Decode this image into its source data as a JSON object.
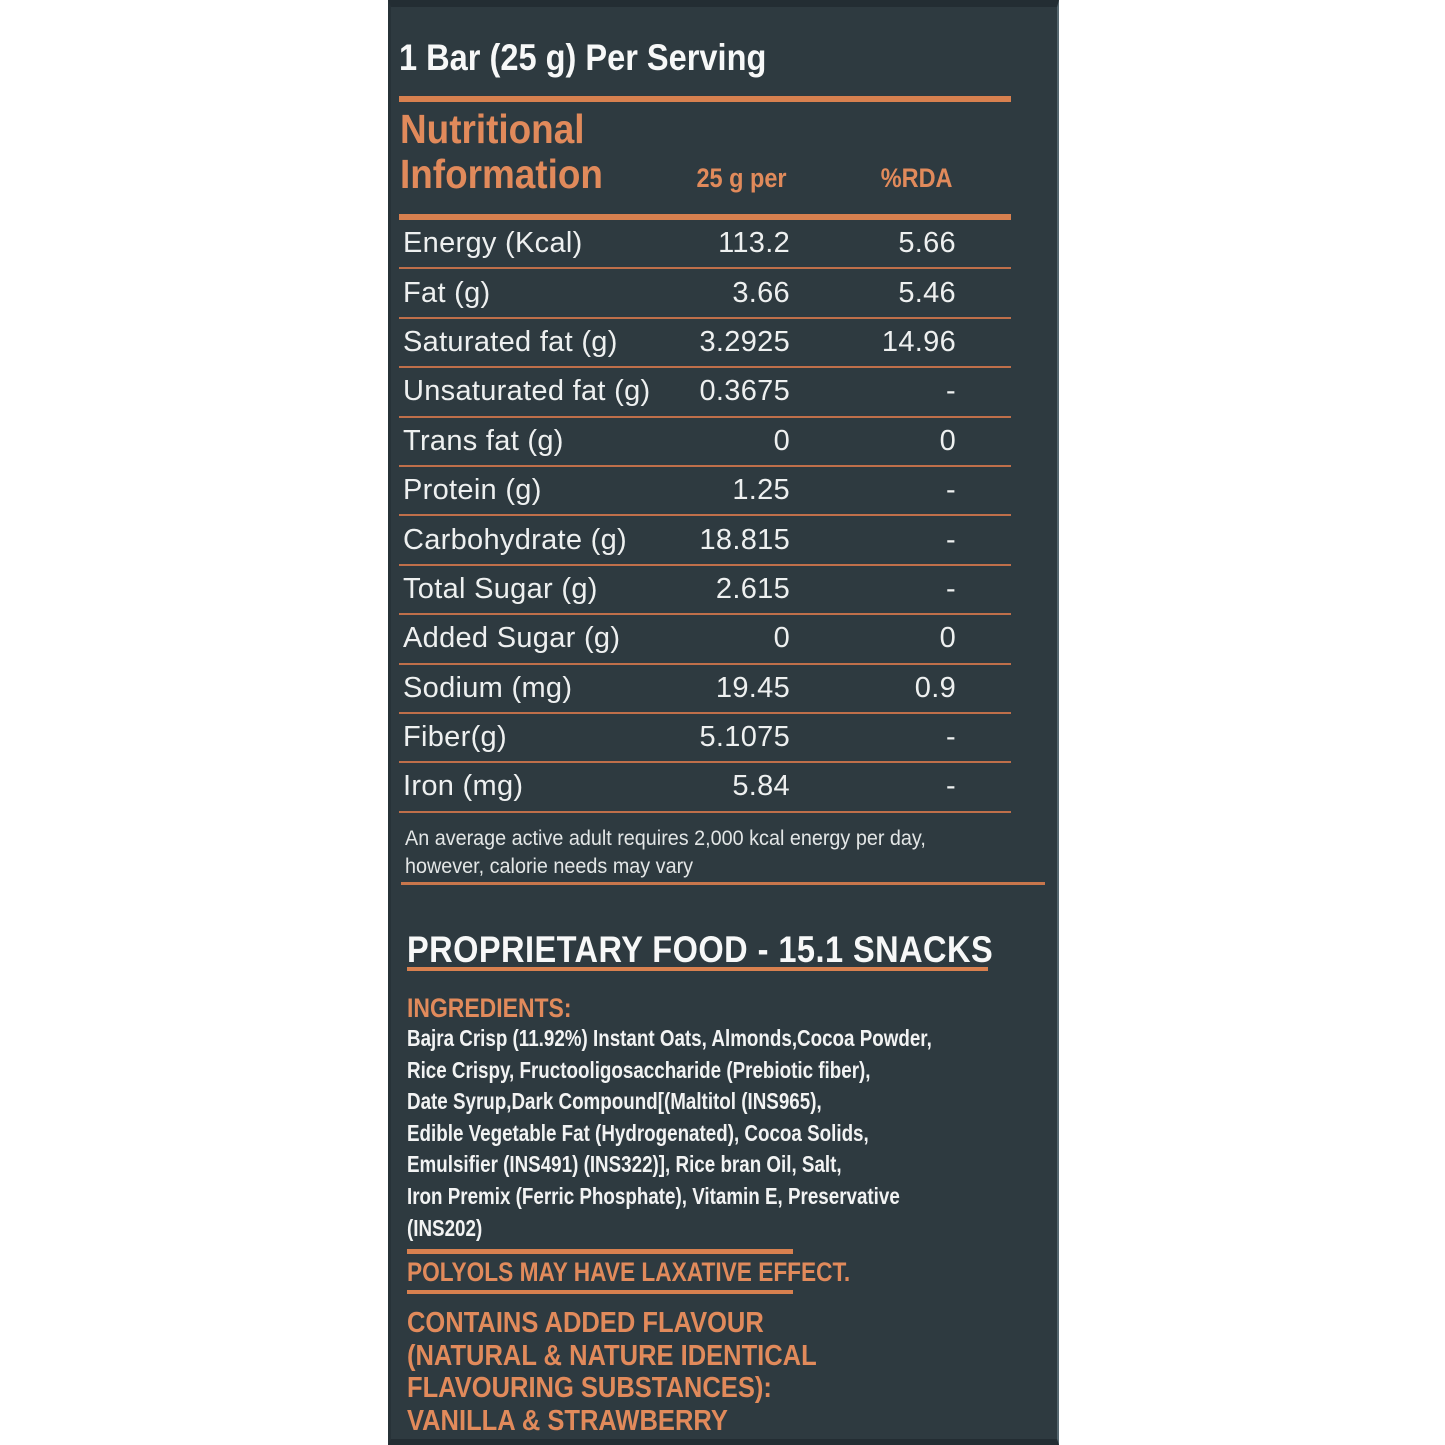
{
  "colors": {
    "panel_bg": "#2e3a40",
    "accent_orange": "#e18a5b",
    "rule_strong": "#d8804f",
    "rule_thin": "#bf6f4a",
    "text_white": "#f5f6f6"
  },
  "header": {
    "serving": "1 Bar (25 g) Per Serving",
    "title_line1": "Nutritional",
    "title_line2": "Information",
    "col_amount": "25 g per",
    "col_rda": "%RDA"
  },
  "table": {
    "rows": [
      {
        "label": "Energy (Kcal)",
        "amount": "113.2",
        "rda": "5.66"
      },
      {
        "label": "Fat (g)",
        "amount": "3.66",
        "rda": "5.46"
      },
      {
        "label": "Saturated fat (g)",
        "amount": "3.2925",
        "rda": "14.96"
      },
      {
        "label": "Unsaturated fat (g)",
        "amount": "0.3675",
        "rda": "-"
      },
      {
        "label": "Trans fat (g)",
        "amount": "0",
        "rda": "0"
      },
      {
        "label": "Protein (g)",
        "amount": "1.25",
        "rda": "-"
      },
      {
        "label": "Carbohydrate (g)",
        "amount": "18.815",
        "rda": "-"
      },
      {
        "label": "Total Sugar (g)",
        "amount": "2.615",
        "rda": "-"
      },
      {
        "label": "Added Sugar (g)",
        "amount": "0",
        "rda": "0"
      },
      {
        "label": "Sodium (mg)",
        "amount": "19.45",
        "rda": "0.9"
      },
      {
        "label": "Fiber(g)",
        "amount": "5.1075",
        "rda": "-"
      },
      {
        "label": "Iron (mg)",
        "amount": "5.84",
        "rda": "-"
      }
    ]
  },
  "footnote": {
    "line1": "An average active adult requires 2,000 kcal energy per day,",
    "line2": "however, calorie needs may vary"
  },
  "proprietary": {
    "title": "PROPRIETARY FOOD - 15.1 SNACKS"
  },
  "ingredients": {
    "heading": "INGREDIENTS:",
    "lines": [
      "Bajra Crisp (11.92%) Instant Oats, Almonds,Cocoa Powder,",
      "Rice Crispy, Fructooligosaccharide (Prebiotic fiber),",
      "Date Syrup,Dark Compound[(Maltitol (INS965),",
      "Edible Vegetable Fat (Hydrogenated), Cocoa Solids,",
      "Emulsifier (INS491) (INS322)], Rice bran Oil, Salt,",
      "Iron Premix (Ferric Phosphate), Vitamin E, Preservative",
      "(INS202)"
    ]
  },
  "polyols": {
    "text": "POLYOLS MAY HAVE LAXATIVE EFFECT."
  },
  "flavour": {
    "lines": [
      "CONTAINS ADDED FLAVOUR",
      "(NATURAL & NATURE IDENTICAL",
      "FLAVOURING SUBSTANCES):",
      "VANILLA & STRAWBERRY"
    ]
  }
}
